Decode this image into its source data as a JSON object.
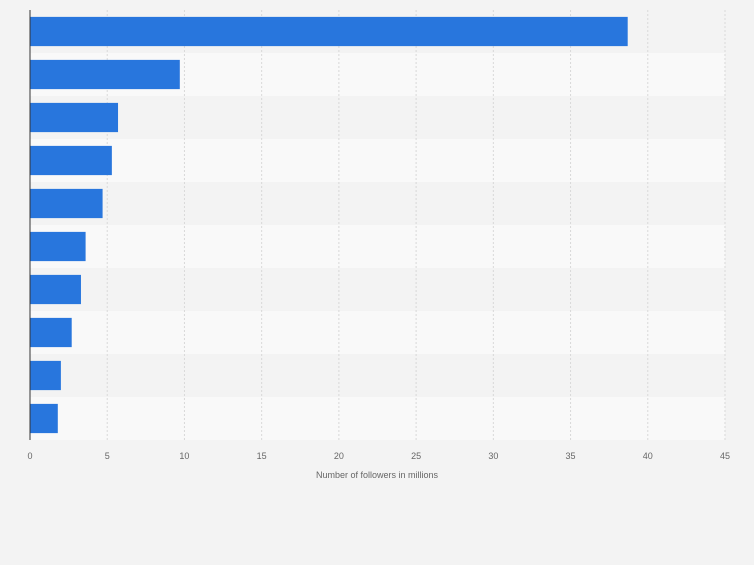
{
  "chart_data": {
    "type": "bar",
    "orientation": "horizontal",
    "categories": [
      "",
      "",
      "",
      "",
      "",
      "",
      "",
      "",
      "",
      ""
    ],
    "values": [
      38.7,
      9.7,
      5.7,
      5.3,
      4.7,
      3.6,
      3.3,
      2.7,
      2.0,
      1.8
    ],
    "xlabel": "Number of followers in millions",
    "ylabel": "",
    "xlim": [
      0,
      45
    ],
    "xticks": [
      "0",
      "5",
      "10",
      "15",
      "20",
      "25",
      "30",
      "35",
      "40",
      "45"
    ],
    "grid": true,
    "bar_color": "#2876dd",
    "band_colors": [
      "#f3f3f3",
      "#f9f9f9"
    ]
  }
}
